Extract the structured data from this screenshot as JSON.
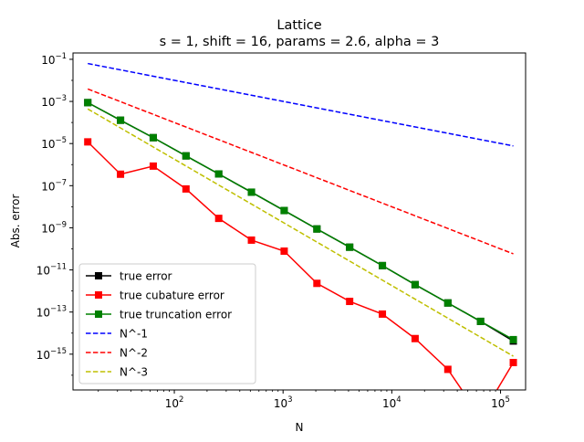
{
  "chart_data": {
    "type": "line",
    "title": "Lattice",
    "subtitle": "s = 1, shift = 16, params = 2.6, alpha = 3",
    "xlabel": "N",
    "ylabel": "Abs. error",
    "x_scale": "log",
    "y_scale": "log",
    "xlim": [
      11.7,
      170000
    ],
    "ylim": [
      2e-17,
      0.2
    ],
    "x_ticks": [
      {
        "v": 100,
        "base": "10",
        "exp": "2"
      },
      {
        "v": 1000,
        "base": "10",
        "exp": "3"
      },
      {
        "v": 10000,
        "base": "10",
        "exp": "4"
      },
      {
        "v": 100000,
        "base": "10",
        "exp": "5"
      }
    ],
    "y_ticks": [
      {
        "v": 1e-15,
        "base": "10",
        "exp": "−15"
      },
      {
        "v": 1e-13,
        "base": "10",
        "exp": "−13"
      },
      {
        "v": 1e-11,
        "base": "10",
        "exp": "−11"
      },
      {
        "v": 1e-09,
        "base": "10",
        "exp": "−9"
      },
      {
        "v": 1e-07,
        "base": "10",
        "exp": "−7"
      },
      {
        "v": 1e-05,
        "base": "10",
        "exp": "−5"
      },
      {
        "v": 0.001,
        "base": "10",
        "exp": "−3"
      },
      {
        "v": 0.1,
        "base": "10",
        "exp": "−1"
      }
    ],
    "grid": false,
    "legend_position": "lower-left",
    "x": [
      16,
      32,
      64,
      128,
      256,
      512,
      1024,
      2048,
      4096,
      8192,
      16384,
      32768,
      65536,
      131072
    ],
    "series": [
      {
        "name": "true error",
        "color": "#000000",
        "style": "solid",
        "marker": "square",
        "values": [
          0.00088,
          0.000128,
          1.9e-05,
          2.6e-06,
          3.6e-07,
          4.9e-08,
          6.6e-09,
          8.8e-10,
          1.2e-10,
          1.6e-11,
          2e-12,
          2.7e-13,
          3.6e-14,
          4.2e-15
        ]
      },
      {
        "name": "true cubature error",
        "color": "#ff0000",
        "style": "solid",
        "marker": "square",
        "values": [
          1.2e-05,
          3.5e-07,
          8.5e-07,
          7e-08,
          2.8e-09,
          2.6e-10,
          7.8e-11,
          2.3e-12,
          3.2e-13,
          8e-14,
          5.5e-15,
          1.9e-16,
          1e-18,
          4e-16
        ]
      },
      {
        "name": "true truncation error",
        "color": "#008000",
        "style": "solid",
        "marker": "square",
        "values": [
          0.00088,
          0.000128,
          1.9e-05,
          2.6e-06,
          3.6e-07,
          4.9e-08,
          6.6e-09,
          8.8e-10,
          1.2e-10,
          1.6e-11,
          2e-12,
          2.7e-13,
          3.6e-14,
          4.9e-15
        ]
      },
      {
        "name": "N^-1",
        "color": "#0000ff",
        "style": "dashed",
        "marker": "none",
        "x": [
          16,
          131072
        ],
        "values": [
          0.063,
          7.7e-06
        ]
      },
      {
        "name": "N^-2",
        "color": "#ff0000",
        "style": "dashed",
        "marker": "none",
        "x": [
          16,
          131072
        ],
        "values": [
          0.0039,
          5.8e-11
        ]
      },
      {
        "name": "N^-3",
        "color": "#bfbf00",
        "style": "dashed",
        "marker": "none",
        "x": [
          16,
          131072
        ],
        "values": [
          0.00044,
          8e-16
        ]
      }
    ]
  }
}
